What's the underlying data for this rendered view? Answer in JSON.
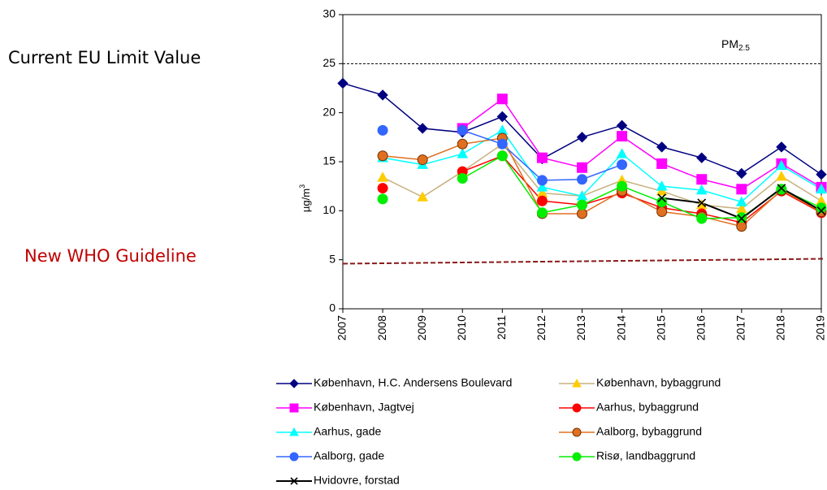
{
  "chart_data": {
    "type": "line",
    "y_label": {
      "text": "µg/m",
      "superscript": "3"
    },
    "annotation": {
      "text": "PM",
      "subscript": "2.5"
    },
    "eu_limit": {
      "label": "Current EU Limit Value",
      "value": 25,
      "color": "#000000"
    },
    "who_guideline": {
      "label": "New WHO Guideline",
      "values": [
        4.6,
        5.1
      ],
      "color": "#8b1a1a",
      "label_color": "#c00000"
    },
    "x": [
      2007,
      2008,
      2009,
      2010,
      2011,
      2012,
      2013,
      2014,
      2015,
      2016,
      2017,
      2018,
      2019
    ],
    "xlim": [
      2007,
      2019
    ],
    "xticks": [
      2007,
      2008,
      2009,
      2010,
      2011,
      2012,
      2013,
      2014,
      2015,
      2016,
      2017,
      2018,
      2019
    ],
    "ylim": [
      0,
      30
    ],
    "yticks": [
      0,
      5,
      10,
      15,
      20,
      25,
      30
    ],
    "series": [
      {
        "name": "København, H.C. Andersens Boulevard",
        "color": "#000080",
        "marker": "diamond",
        "values": [
          23,
          21.8,
          18.4,
          18,
          19.6,
          15.3,
          17.5,
          18.7,
          16.5,
          15.4,
          13.8,
          16.5,
          13.7
        ]
      },
      {
        "name": "København, bybaggrund",
        "color": "#ffcc00",
        "line_color": "#c8b080",
        "marker": "triangle",
        "values": [
          null,
          13.4,
          11.4,
          14.0,
          16.8,
          11.8,
          11.5,
          13.1,
          12.0,
          10.6,
          10.2,
          13.5,
          11.0
        ]
      },
      {
        "name": "København, Jagtvej",
        "color": "#ff00ff",
        "marker": "square",
        "values": [
          null,
          null,
          null,
          18.4,
          21.4,
          15.4,
          14.4,
          17.6,
          14.8,
          13.2,
          12.2,
          14.8,
          12.4
        ]
      },
      {
        "name": "Aarhus, bybaggrund",
        "color": "#ff0000",
        "marker": "circle",
        "values": [
          null,
          12.3,
          null,
          14.0,
          15.6,
          11.0,
          10.6,
          11.8,
          10.3,
          9.7,
          8.8,
          12.0,
          9.8
        ]
      },
      {
        "name": "Aarhus, gade",
        "color": "#00ffff",
        "marker": "triangle",
        "values": [
          null,
          15.4,
          14.7,
          15.8,
          18.2,
          12.4,
          11.5,
          15.8,
          12.5,
          12.1,
          10.9,
          14.6,
          12.2
        ]
      },
      {
        "name": "Aalborg, bybaggrund",
        "color": "#e07020",
        "marker_edge": "#703000",
        "marker": "circle",
        "values": [
          null,
          15.6,
          15.2,
          16.8,
          17.4,
          9.7,
          9.7,
          12.0,
          9.9,
          9.4,
          8.4,
          12.1,
          9.9
        ]
      },
      {
        "name": "Aalborg, gade",
        "color": "#3366ff",
        "marker": "circle",
        "values": [
          null,
          18.2,
          null,
          18.2,
          16.8,
          13.1,
          13.2,
          14.7,
          null,
          null,
          null,
          null,
          null
        ]
      },
      {
        "name": "Risø, landbaggrund",
        "color": "#00ee00",
        "marker": "circle",
        "values": [
          null,
          11.2,
          null,
          13.3,
          15.6,
          9.8,
          10.6,
          12.5,
          10.9,
          9.2,
          9.3,
          12.2,
          10.3
        ]
      },
      {
        "name": "Hvidovre, forstad",
        "color": "#000000",
        "marker": "x",
        "values": [
          null,
          null,
          null,
          null,
          null,
          null,
          null,
          null,
          11.3,
          10.8,
          9.2,
          12.3,
          10.0
        ]
      }
    ]
  }
}
